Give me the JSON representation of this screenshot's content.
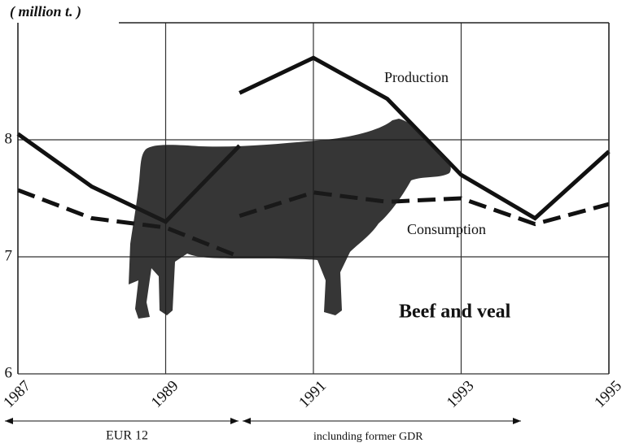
{
  "chart_data": {
    "type": "line",
    "unit_label": "( million t. )",
    "x": [
      1987,
      1988,
      1989,
      1990,
      1990,
      1990,
      1991,
      1992,
      1993,
      1994,
      1995
    ],
    "series": [
      {
        "name": "Production",
        "color": "#111111",
        "style": "solid",
        "values": [
          8.05,
          7.6,
          7.3,
          7.95,
          null,
          8.4,
          8.7,
          8.35,
          7.7,
          7.33,
          7.9
        ]
      },
      {
        "name": "Consumption",
        "color": "#111111",
        "style": "dashed",
        "values": [
          7.57,
          7.33,
          7.25,
          7.0,
          null,
          7.35,
          7.55,
          7.47,
          7.5,
          7.28,
          7.45
        ]
      }
    ],
    "xlim": [
      1987,
      1995
    ],
    "xticks": [
      1987,
      1989,
      1991,
      1993,
      1995
    ],
    "ylim": [
      6,
      9
    ],
    "yticks": [
      6,
      7,
      8
    ],
    "grid": true,
    "annotations": [
      "Beef and veal",
      "EUR 12",
      "inclunding former GDR"
    ]
  }
}
